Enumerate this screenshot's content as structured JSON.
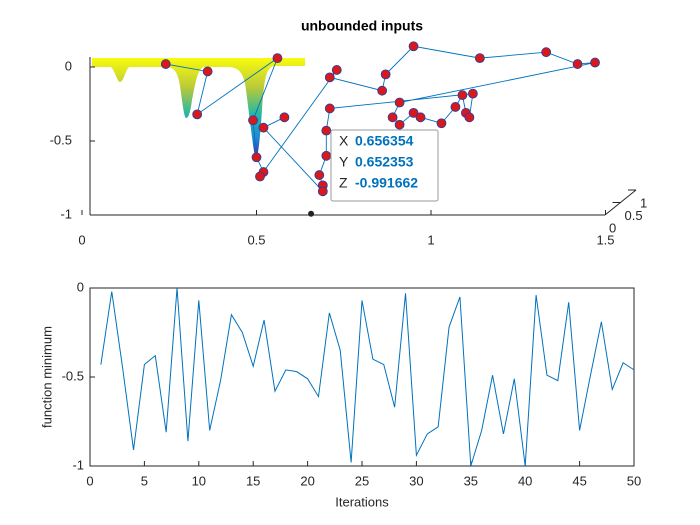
{
  "chart_data": [
    {
      "type": "scatter3d",
      "title": "unbounded inputs",
      "x": [
        0.24,
        0.36,
        0.33,
        0.56,
        0.49,
        0.5,
        0.52,
        0.51,
        0.73,
        0.71,
        0.86,
        0.87,
        0.95,
        1.14,
        1.33,
        1.42,
        1.47,
        0.91,
        0.89,
        0.91,
        0.95,
        0.97,
        1.03,
        1.07,
        1.09,
        1.1,
        1.11,
        1.12,
        0.71,
        0.7,
        0.7,
        0.68,
        0.69,
        0.69,
        0.52,
        0.58
      ],
      "values": [
        0.02,
        -0.03,
        -0.32,
        0.06,
        -0.36,
        -0.61,
        -0.71,
        -0.74,
        -0.02,
        -0.07,
        -0.16,
        -0.05,
        0.14,
        0.06,
        0.1,
        0.02,
        0.03,
        -0.24,
        -0.34,
        -0.39,
        -0.31,
        -0.34,
        -0.38,
        -0.27,
        -0.19,
        -0.31,
        -0.34,
        -0.18,
        -0.28,
        -0.43,
        -0.6,
        -0.73,
        -0.8,
        -0.84,
        -0.41,
        -0.34
      ],
      "marker_color": "#d7191c",
      "line_color": "#0072bd",
      "xlim": [
        0,
        1.5
      ],
      "xticks": [
        0,
        0.5,
        1,
        1.5
      ],
      "zlim": [
        -1,
        0
      ],
      "zticks": [
        0,
        -0.5,
        -1
      ],
      "ylim": [
        0,
        1
      ],
      "yticks": [
        0,
        0.5,
        1
      ],
      "datatip": {
        "labels": [
          "X",
          "Y",
          "Z"
        ],
        "values": [
          0.656354,
          0.652353,
          -0.991662
        ]
      }
    },
    {
      "type": "line",
      "xlabel": "Iterations",
      "ylabel": "function minimum",
      "color": "#0072bd",
      "x": [
        1,
        2,
        3,
        4,
        5,
        6,
        7,
        8,
        9,
        10,
        11,
        12,
        13,
        14,
        15,
        16,
        17,
        18,
        19,
        20,
        21,
        22,
        23,
        24,
        25,
        26,
        27,
        28,
        29,
        30,
        31,
        32,
        33,
        34,
        35,
        36,
        37,
        38,
        39,
        40,
        41,
        42,
        43,
        44,
        45,
        46,
        47,
        48,
        49,
        50
      ],
      "values": [
        -0.43,
        -0.02,
        -0.45,
        -0.91,
        -0.43,
        -0.38,
        -0.81,
        0,
        -0.86,
        -0.07,
        -0.8,
        -0.52,
        -0.15,
        -0.25,
        -0.44,
        -0.18,
        -0.58,
        -0.46,
        -0.47,
        -0.51,
        -0.61,
        -0.14,
        -0.35,
        -0.98,
        -0.07,
        -0.4,
        -0.43,
        -0.67,
        -0.03,
        -0.94,
        -0.82,
        -0.78,
        -0.22,
        -0.05,
        -1,
        -0.8,
        -0.49,
        -0.82,
        -0.51,
        -1,
        -0.04,
        -0.49,
        -0.52,
        -0.08,
        -0.8,
        -0.49,
        -0.19,
        -0.57,
        -0.42,
        -0.46
      ],
      "xlim": [
        0,
        50
      ],
      "xticks": [
        0,
        5,
        10,
        15,
        20,
        25,
        30,
        35,
        40,
        45,
        50
      ],
      "ylim": [
        -1,
        0
      ],
      "yticks": [
        -1,
        -0.5,
        0
      ]
    }
  ]
}
